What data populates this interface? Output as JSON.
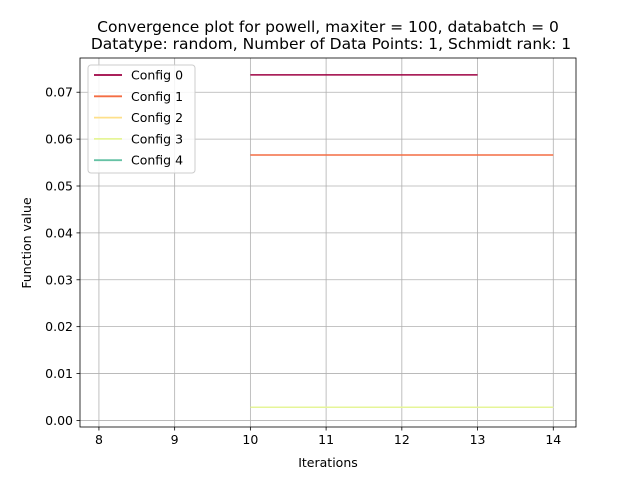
{
  "chart_data": {
    "type": "line",
    "title_line1": "Convergence plot for powell, maxiter = 100, databatch = 0",
    "title_line2": "Datatype: random, Number of Data Points: 1, Schmidt rank: 1",
    "xlabel": "Iterations",
    "ylabel": "Function value",
    "xlim": [
      7.75,
      14.3
    ],
    "ylim": [
      -0.0014,
      0.0773
    ],
    "x_ticks": [
      8,
      9,
      10,
      11,
      12,
      13,
      14
    ],
    "y_ticks": [
      0.0,
      0.01,
      0.02,
      0.03,
      0.04,
      0.05,
      0.06,
      0.07
    ],
    "grid": true,
    "legend_position": "top-left",
    "series": [
      {
        "name": "Config 0",
        "color": "#9e0142",
        "x": [
          10,
          13
        ],
        "y": [
          0.0737,
          0.0737
        ]
      },
      {
        "name": "Config 1",
        "color": "#f46d43",
        "x": [
          10,
          14
        ],
        "y": [
          0.0566,
          0.0566
        ]
      },
      {
        "name": "Config 2",
        "color": "#fee08b",
        "x": [],
        "y": []
      },
      {
        "name": "Config 3",
        "color": "#e6f598",
        "x": [
          10,
          14
        ],
        "y": [
          0.0028,
          0.0028
        ]
      },
      {
        "name": "Config 4",
        "color": "#66c2a5",
        "x": [],
        "y": []
      }
    ]
  }
}
